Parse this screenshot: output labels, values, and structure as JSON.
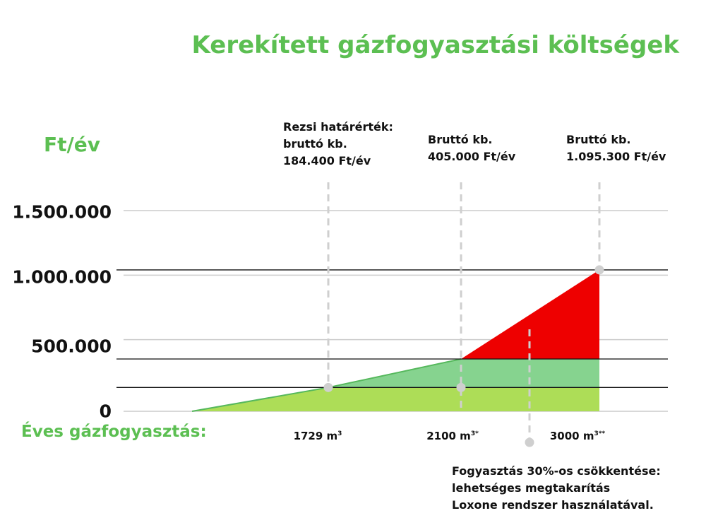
{
  "title": "Kerekített gázfogyasztási költségek",
  "chart_data": {
    "type": "area",
    "ylabel": "Ft/év",
    "xlabel": "Éves gázfogyasztás:",
    "y_ticks": [
      {
        "label": "0",
        "value": 0
      },
      {
        "label": "500.000",
        "value": 500000
      },
      {
        "label": "1.000.000",
        "value": 1000000
      },
      {
        "label": "1.500.000",
        "value": 1500000
      }
    ],
    "ylim": [
      0,
      1500000
    ],
    "points": [
      {
        "x": 0,
        "y": 0
      },
      {
        "x": 1729,
        "y": 184400
      },
      {
        "x": 2100,
        "y": 405000
      },
      {
        "x": 3000,
        "y": 1095300
      }
    ],
    "x_ticks": [
      {
        "value": 1729,
        "label": "1729 m",
        "sup": "3"
      },
      {
        "value": 2100,
        "label": "2100 m",
        "sup": "3*"
      },
      {
        "value": 3000,
        "label": "3000 m",
        "sup": "3**"
      }
    ],
    "annotations": [
      {
        "text": "Rezsi határérték:\nbruttó kb.\n184.400 Ft/év",
        "x": 1729,
        "y": 184400
      },
      {
        "text": "Bruttó kb.\n405.000 Ft/év",
        "x": 2100,
        "y": 405000
      },
      {
        "text": "Bruttó kb.\n1.095.300 Ft/év",
        "x": 3000,
        "y": 1095300
      }
    ],
    "savings_note": "Fogyasztás 30%-os csökkentése:\nlehetséges megtakarítás\nLoxone rendszer használatával.",
    "colors": {
      "title": "#5cbf52",
      "area_low": "#addd57",
      "area_mid": "#86d38f",
      "area_high": "#ee0000",
      "line": "#55b85c",
      "grid": "#cccccc",
      "level_line": "#111111",
      "marker": "#cfcfcf"
    }
  }
}
